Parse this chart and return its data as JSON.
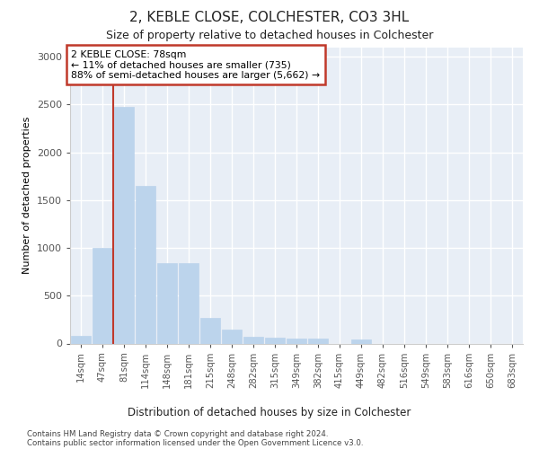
{
  "title1": "2, KEBLE CLOSE, COLCHESTER, CO3 3HL",
  "title2": "Size of property relative to detached houses in Colchester",
  "xlabel": "Distribution of detached houses by size in Colchester",
  "ylabel": "Number of detached properties",
  "categories": [
    "14sqm",
    "47sqm",
    "81sqm",
    "114sqm",
    "148sqm",
    "181sqm",
    "215sqm",
    "248sqm",
    "282sqm",
    "315sqm",
    "349sqm",
    "382sqm",
    "415sqm",
    "449sqm",
    "482sqm",
    "516sqm",
    "549sqm",
    "583sqm",
    "616sqm",
    "650sqm",
    "683sqm"
  ],
  "values": [
    80,
    1000,
    2480,
    1650,
    840,
    840,
    270,
    150,
    70,
    60,
    55,
    50,
    0,
    40,
    0,
    0,
    0,
    0,
    0,
    0,
    0
  ],
  "bar_color": "#bcd4ec",
  "annotation_text": "2 KEBLE CLOSE: 78sqm\n← 11% of detached houses are smaller (735)\n88% of semi-detached houses are larger (5,662) →",
  "annotation_box_color": "#ffffff",
  "annotation_box_edge": "#c0392b",
  "vline_color": "#c0392b",
  "vline_x_index": 2,
  "ylim": [
    0,
    3100
  ],
  "yticks": [
    0,
    500,
    1000,
    1500,
    2000,
    2500,
    3000
  ],
  "background_color": "#e8eef6",
  "grid_color": "#ffffff",
  "fig_bg": "#ffffff",
  "footer1": "Contains HM Land Registry data © Crown copyright and database right 2024.",
  "footer2": "Contains public sector information licensed under the Open Government Licence v3.0."
}
